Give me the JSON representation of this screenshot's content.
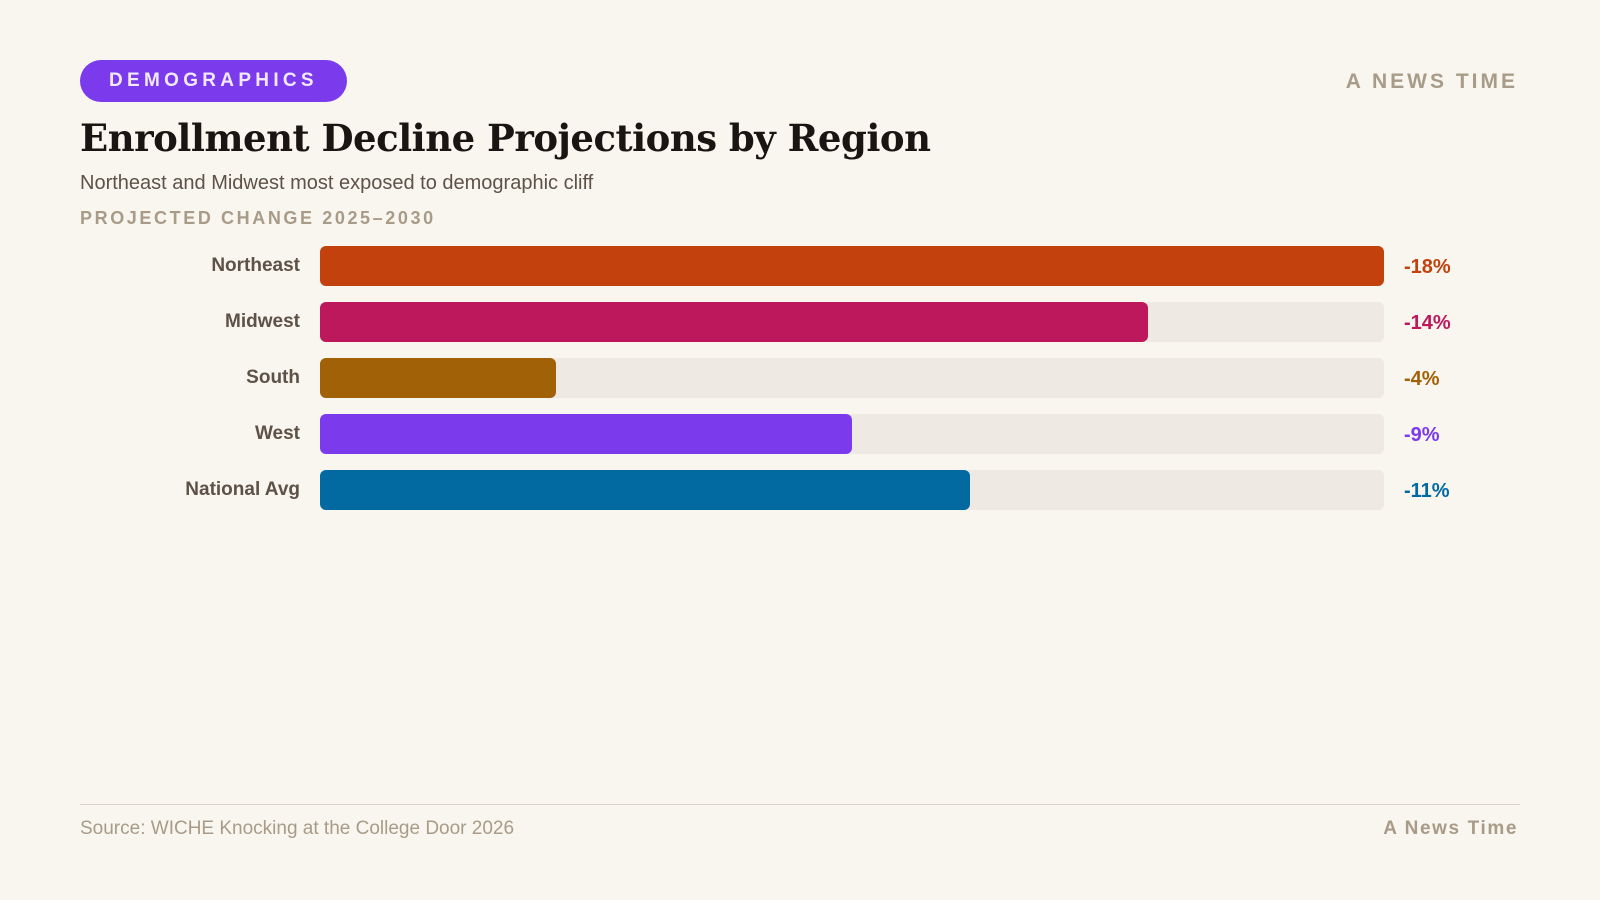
{
  "header": {
    "tag": "DEMOGRAPHICS",
    "brand": "A NEWS TIME"
  },
  "footer": {
    "source": "Source: WICHE Knocking at the College Door 2026",
    "brand": "A News Time"
  },
  "colors": {
    "background": "#f9f5ef",
    "track": "#eee9e2",
    "tag": "#7c3aed"
  },
  "chart_data": {
    "type": "bar",
    "orientation": "horizontal",
    "title": "Enrollment Decline Projections by Region",
    "subtitle": "Northeast and Midwest most exposed to demographic cliff",
    "xlabel": "PROJECTED CHANGE 2025–2030",
    "categories": [
      "Northeast",
      "Midwest",
      "South",
      "West",
      "National Avg"
    ],
    "values": [
      -18,
      -14,
      -4,
      -9,
      -11
    ],
    "labels": [
      "-18%",
      "-14%",
      "-4%",
      "-9%",
      "-11%"
    ],
    "colors": [
      "#c2410c",
      "#be185d",
      "#a16207",
      "#7c3aed",
      "#0369a1"
    ],
    "xlim": [
      0,
      -18
    ],
    "grid": false
  }
}
